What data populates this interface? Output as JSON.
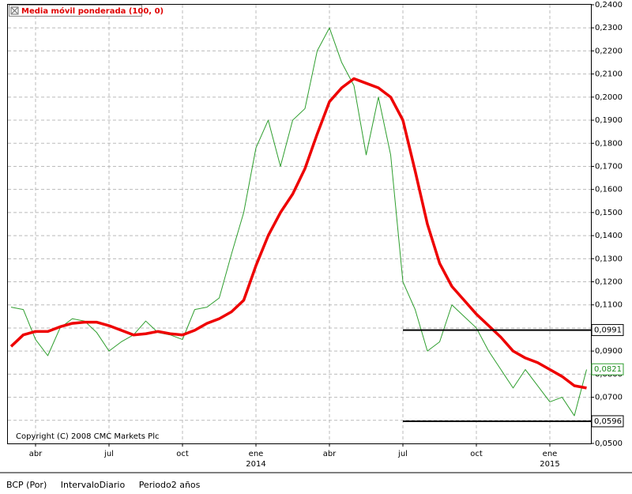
{
  "chart_data": {
    "type": "line",
    "legend_title": "Media móvil ponderada (100, 0)",
    "copyright": "Copyright (C) 2008 CMC Markets Plc",
    "categories": [
      null,
      null,
      "abr",
      null,
      null,
      null,
      null,
      null,
      "jul",
      null,
      null,
      null,
      null,
      null,
      "oct",
      null,
      null,
      null,
      null,
      null,
      "ene",
      null,
      null,
      null,
      null,
      null,
      "abr",
      null,
      null,
      null,
      null,
      null,
      "jul",
      null,
      null,
      null,
      null,
      null,
      "oct",
      null,
      null,
      null,
      null,
      null,
      "ene",
      null,
      null,
      null
    ],
    "category_years": [
      null,
      null,
      null,
      null,
      null,
      null,
      null,
      null,
      null,
      null,
      null,
      null,
      null,
      null,
      null,
      null,
      null,
      null,
      null,
      null,
      "2014",
      null,
      null,
      null,
      null,
      null,
      null,
      null,
      null,
      null,
      null,
      null,
      null,
      null,
      null,
      null,
      null,
      null,
      null,
      null,
      null,
      null,
      null,
      null,
      "2015",
      null,
      null,
      null
    ],
    "series": [
      {
        "color": "#2e9e2e",
        "values": [
          0.109,
          0.108,
          0.095,
          0.088,
          0.1,
          0.104,
          0.103,
          0.098,
          0.09,
          0.094,
          0.097,
          0.103,
          0.098,
          0.097,
          0.095,
          0.108,
          0.109,
          0.113,
          0.132,
          0.15,
          0.178,
          0.19,
          0.17,
          0.19,
          0.195,
          0.22,
          0.23,
          0.215,
          0.205,
          0.175,
          0.2,
          0.175,
          0.12,
          0.108,
          0.09,
          0.094,
          0.11,
          0.105,
          0.1,
          0.09,
          0.082,
          0.074,
          0.082,
          0.075,
          0.068,
          0.07,
          0.062,
          0.082
        ]
      },
      {
        "name": "Media móvil ponderada (100, 0)",
        "color": "#ee0000",
        "values": [
          0.092,
          0.097,
          0.0985,
          0.0985,
          0.1005,
          0.102,
          0.1025,
          0.1025,
          0.101,
          0.099,
          0.097,
          0.0975,
          0.0985,
          0.0975,
          0.097,
          0.099,
          0.102,
          0.104,
          0.107,
          0.112,
          0.127,
          0.14,
          0.15,
          0.158,
          0.169,
          0.184,
          0.198,
          0.204,
          0.208,
          0.206,
          0.204,
          0.2,
          0.19,
          0.168,
          0.145,
          0.128,
          0.118,
          0.112,
          0.106,
          0.101,
          0.096,
          0.09,
          0.087,
          0.085,
          0.082,
          0.079,
          0.075,
          0.074
        ]
      }
    ],
    "ylim": [
      0.05,
      0.24
    ],
    "yticks": [
      {
        "value": 0.05,
        "label": "0,0500"
      },
      {
        "value": 0.06,
        "label": "0,0600"
      },
      {
        "value": 0.07,
        "label": "0,0700"
      },
      {
        "value": 0.08,
        "label": "0,0800"
      },
      {
        "value": 0.09,
        "label": "0,0900"
      },
      {
        "value": 0.1,
        "label": "0,1000"
      },
      {
        "value": 0.11,
        "label": "0,1100"
      },
      {
        "value": 0.12,
        "label": "0,1200"
      },
      {
        "value": 0.13,
        "label": "0,1300"
      },
      {
        "value": 0.14,
        "label": "0,1400"
      },
      {
        "value": 0.15,
        "label": "0,1500"
      },
      {
        "value": 0.16,
        "label": "0,1600"
      },
      {
        "value": 0.17,
        "label": "0,1700"
      },
      {
        "value": 0.18,
        "label": "0,1800"
      },
      {
        "value": 0.19,
        "label": "0,1900"
      },
      {
        "value": 0.2,
        "label": "0,2000"
      },
      {
        "value": 0.21,
        "label": "0,2100"
      },
      {
        "value": 0.22,
        "label": "0,2200"
      },
      {
        "value": 0.23,
        "label": "0,2300"
      },
      {
        "value": 0.24,
        "label": "0,2400"
      }
    ],
    "grid": true,
    "levels": [
      {
        "value": 0.0991,
        "label": "0,0991"
      },
      {
        "value": 0.0596,
        "label": "0,0596"
      }
    ],
    "last_price": {
      "value": 0.0821,
      "label": "0,0821"
    },
    "footer": [
      "BCP (Por)",
      "IntervaloDiario",
      "Periodo2 años"
    ]
  }
}
